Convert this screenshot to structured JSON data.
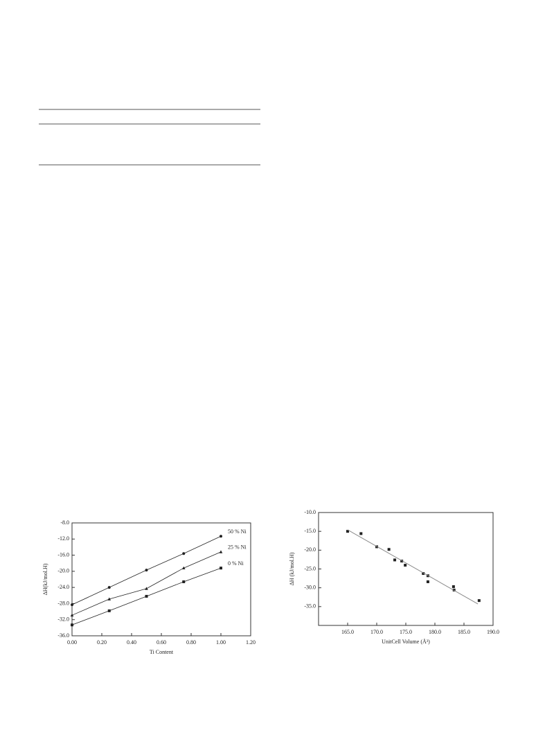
{
  "chart_data": [
    {
      "type": "line",
      "x_label": "Ti Content",
      "y_label": "ΔH(kJ/mol.H)",
      "x": [
        0,
        0.25,
        0.5,
        0.75,
        1.0
      ],
      "series": [
        {
          "name": "50 % Ni",
          "color": "#222222",
          "marker": "circle",
          "values": [
            -28.3,
            -24.0,
            -19.7,
            -15.6,
            -11.3
          ]
        },
        {
          "name": "25 % Ni",
          "color": "#222222",
          "marker": "triangle",
          "values": [
            -30.9,
            -26.9,
            -24.3,
            -19.2,
            -15.2
          ]
        },
        {
          "name": "0 % Ni",
          "color": "#222222",
          "marker": "square",
          "values": [
            -33.3,
            -29.8,
            -26.2,
            -22.6,
            -19.2
          ]
        }
      ],
      "xlim": [
        0,
        1.2
      ],
      "xticks": [
        {
          "value": 0,
          "label": "0.00"
        },
        {
          "value": 0.2,
          "label": "0.20"
        },
        {
          "value": 0.4,
          "label": "0.40"
        },
        {
          "value": 0.6,
          "label": "0.60"
        },
        {
          "value": 0.8,
          "label": "0.80"
        },
        {
          "value": 1.0,
          "label": "1.00"
        },
        {
          "value": 1.2,
          "label": "1.20"
        }
      ],
      "ylim": [
        -36,
        -8
      ],
      "yticks": [
        {
          "value": -36,
          "label": "-36.0"
        },
        {
          "value": -32,
          "label": "-32.0"
        },
        {
          "value": -28,
          "label": "-28.0"
        },
        {
          "value": -24,
          "label": "-24.0"
        },
        {
          "value": -20,
          "label": "-20.0"
        },
        {
          "value": -16,
          "label": "-16.0"
        },
        {
          "value": -12,
          "label": "-12.0"
        },
        {
          "value": -8,
          "label": "-8.0"
        }
      ]
    },
    {
      "type": "scatter",
      "x_label": "UnitCell Volume (Å³)",
      "y_label": "ΔH (kJ/mol.H)",
      "x": [
        165.0,
        167.3,
        170.0,
        172.1,
        173.1,
        174.3,
        174.9,
        178.0,
        178.8,
        178.8,
        183.2,
        183.3,
        187.6
      ],
      "series": [
        {
          "color": "#222222",
          "marker": "square",
          "values": [
            -15.0,
            -15.6,
            -19.1,
            -19.8,
            -22.6,
            -22.9,
            -24.0,
            -26.2,
            -26.8,
            -28.4,
            -29.7,
            -30.6,
            -33.4
          ]
        }
      ],
      "trendline": {
        "color": "#888888",
        "x": [
          165.0,
          187.4
        ],
        "values": [
          -14.6,
          -34.3
        ]
      },
      "xlim": [
        160,
        190
      ],
      "xticks": [
        {
          "value": 165,
          "label": "165.0"
        },
        {
          "value": 170,
          "label": "170.0"
        },
        {
          "value": 175,
          "label": "175.0"
        },
        {
          "value": 180,
          "label": "180.0"
        },
        {
          "value": 185,
          "label": "185.0"
        },
        {
          "value": 190,
          "label": "190.0"
        }
      ],
      "ylim": [
        -40,
        -10
      ],
      "yticks": [
        {
          "value": -35,
          "label": "-35.0"
        },
        {
          "value": -30,
          "label": "-30.0"
        },
        {
          "value": -25,
          "label": "-25.0"
        },
        {
          "value": -20,
          "label": "-20.0"
        },
        {
          "value": -15,
          "label": "-15.0"
        },
        {
          "value": -10,
          "label": "-10.0"
        }
      ]
    }
  ]
}
